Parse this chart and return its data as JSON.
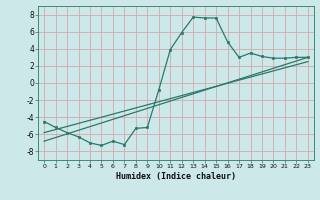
{
  "background_color": "#cce8e8",
  "grid_color": "#d4a8a8",
  "line_color": "#2a7a6a",
  "marker_color": "#2a7a6a",
  "xlabel": "Humidex (Indice chaleur)",
  "xlim": [
    -0.5,
    23.5
  ],
  "ylim": [
    -9,
    9
  ],
  "yticks": [
    -8,
    -6,
    -4,
    -2,
    0,
    2,
    4,
    6,
    8
  ],
  "xticks": [
    0,
    1,
    2,
    3,
    4,
    5,
    6,
    7,
    8,
    9,
    10,
    11,
    12,
    13,
    14,
    15,
    16,
    17,
    18,
    19,
    20,
    21,
    22,
    23
  ],
  "curve_x": [
    0,
    1,
    2,
    3,
    4,
    5,
    6,
    7,
    8,
    9,
    10,
    11,
    12,
    13,
    14,
    15,
    16,
    17,
    18,
    19,
    20,
    21,
    22,
    23
  ],
  "curve_y": [
    -4.5,
    -5.2,
    -5.8,
    -6.3,
    -7.0,
    -7.3,
    -6.8,
    -7.2,
    -5.3,
    -5.2,
    -0.8,
    3.9,
    5.9,
    7.7,
    7.6,
    7.6,
    4.8,
    3.0,
    3.5,
    3.1,
    2.9,
    2.9,
    3.0,
    3.0
  ],
  "line2_x": [
    0,
    23
  ],
  "line2_y": [
    -6.8,
    3.0
  ],
  "line3_x": [
    0,
    23
  ],
  "line3_y": [
    -5.8,
    2.5
  ]
}
